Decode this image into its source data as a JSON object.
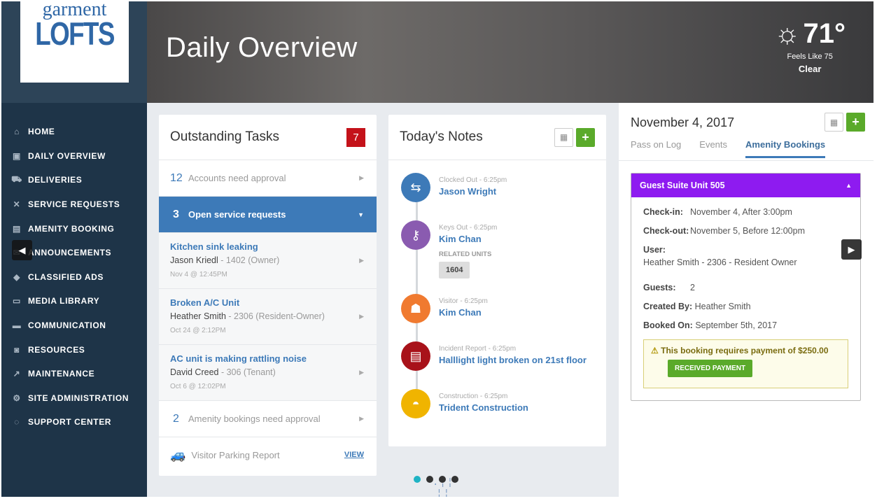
{
  "logo": {
    "line1": "garment",
    "line2": "LOFTS"
  },
  "sidebar": {
    "items": [
      {
        "label": "HOME",
        "icon": "⌂"
      },
      {
        "label": "DAILY OVERVIEW",
        "icon": "▣"
      },
      {
        "label": "DELIVERIES",
        "icon": "⛟"
      },
      {
        "label": "SERVICE REQUESTS",
        "icon": "✕"
      },
      {
        "label": "AMENITY BOOKING",
        "icon": "▤"
      },
      {
        "label": "ANNOUNCEMENTS",
        "icon": "✉"
      },
      {
        "label": "CLASSIFIED ADS",
        "icon": "◆"
      },
      {
        "label": "MEDIA LIBRARY",
        "icon": "▭"
      },
      {
        "label": "COMMUNICATION",
        "icon": "▬"
      },
      {
        "label": "RESOURCES",
        "icon": "◙"
      },
      {
        "label": "MAINTENANCE",
        "icon": "↗"
      },
      {
        "label": "SITE ADMINISTRATION",
        "icon": "⚙"
      },
      {
        "label": "SUPPORT CENTER",
        "icon": "◌"
      }
    ]
  },
  "header": {
    "title": "Daily Overview"
  },
  "weather": {
    "temp": "71°",
    "feels": "Feels Like 75",
    "condition": "Clear"
  },
  "tasks": {
    "title": "Outstanding Tasks",
    "badge": "7",
    "accounts": {
      "count": "12",
      "label": "Accounts need approval"
    },
    "service": {
      "count": "3",
      "label": "Open service requests"
    },
    "requests": [
      {
        "title": "Kitchen sink leaking",
        "name": "Jason Kriedl",
        "unit": "- 1402 (Owner)",
        "date": "Nov 4 @ 12:45PM"
      },
      {
        "title": "Broken A/C Unit",
        "name": "Heather Smith",
        "unit": "- 2306 (Resident-Owner)",
        "date": "Oct 24 @ 2:12PM"
      },
      {
        "title": "AC unit is making rattling noise",
        "name": "David Creed",
        "unit": "- 306 (Tenant)",
        "date": "Oct 6 @ 12:02PM"
      }
    ],
    "amenity": {
      "count": "2",
      "label": "Amenity bookings need approval"
    },
    "parking": {
      "label": "Visitor Parking Report",
      "link": "VIEW"
    }
  },
  "notes": {
    "title": "Today's Notes",
    "items": [
      {
        "label": "Clocked Out - 6:25pm",
        "name": "Jason Wright",
        "color": "#3d7ab8",
        "icon": "clock-out-icon"
      },
      {
        "label": "Keys Out - 6:25pm",
        "name": "Kim Chan",
        "color": "#8a5bb0",
        "icon": "key-icon",
        "related_label": "RELATED UNITS",
        "unit": "1604"
      },
      {
        "label": "Visitor - 6:25pm",
        "name": "Kim Chan",
        "color": "#f07a30",
        "icon": "visitor-icon"
      },
      {
        "label": "Incident Report - 6:25pm",
        "name": "Halllight light broken on 21st floor",
        "color": "#a8121a",
        "icon": "report-icon"
      },
      {
        "label": "Construction - 6:25pm",
        "name": "Trident Construction",
        "color": "#f0b400",
        "icon": "hardhat-icon"
      }
    ]
  },
  "right": {
    "date": "November 4, 2017",
    "tabs": [
      "Pass on Log",
      "Events",
      "Amenity Bookings"
    ],
    "active_tab": "Amenity Bookings",
    "booking": {
      "title": "Guest Suite Unit 505",
      "checkin_label": "Check-in:",
      "checkin": "November 4, After 3:00pm",
      "checkout_label": "Check-out:",
      "checkout": "November 5, Before 12:00pm",
      "user_label": "User:",
      "user": "Heather Smith - 2306 - Resident Owner",
      "guests_label": "Guests:",
      "guests": "2",
      "created_label": "Created By:",
      "created": "Heather Smith",
      "booked_label": "Booked On:",
      "booked": "September 5th, 2017",
      "warning": "This booking requires payment of $250.00",
      "pay_button": "RECEIVED PAYMENT"
    }
  },
  "carousel": {
    "pages": 4,
    "active": 1
  },
  "colors": {
    "accent": "#3d7ab8",
    "sidebar": "#1e3448",
    "booking_header": "#8e1bf0",
    "add": "#5aaa2a",
    "badge": "#c4121a"
  }
}
